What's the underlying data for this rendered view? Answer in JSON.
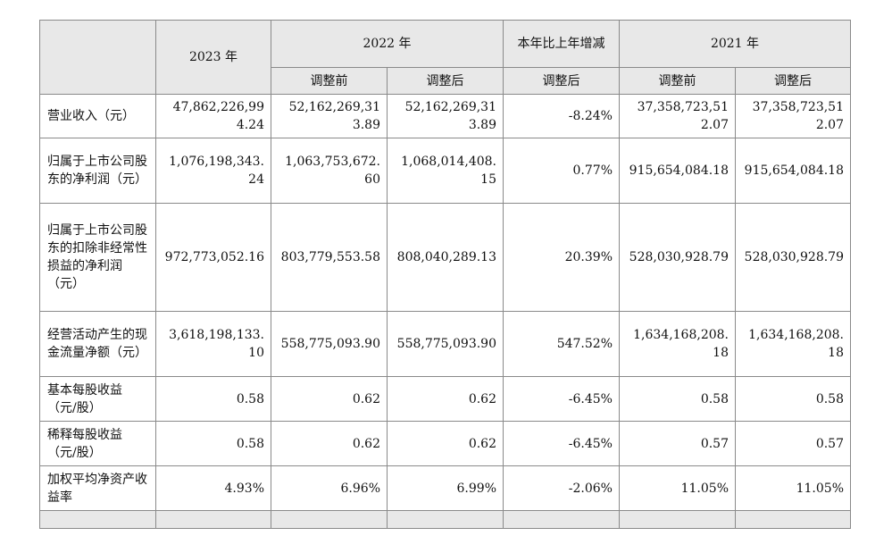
{
  "header": {
    "col_2023": "2023 年",
    "col_2022": "2022 年",
    "col_change": "本年比上年增减",
    "col_2021": "2021 年",
    "sub_before": "调整前",
    "sub_after": "调整后",
    "sub_change_after": "调整后"
  },
  "rows": [
    {
      "label": "营业收入（元）",
      "y2023": "47,862,226,994.24",
      "y2022_before": "52,162,269,313.89",
      "y2022_after": "52,162,269,313.89",
      "change": "-8.24%",
      "y2021_before": "37,358,723,512.07",
      "y2021_after": "37,358,723,512.07"
    },
    {
      "label": "归属于上市公司股东的净利润（元）",
      "y2023": "1,076,198,343.24",
      "y2022_before": "1,063,753,672.60",
      "y2022_after": "1,068,014,408.15",
      "change": "0.77%",
      "y2021_before": "915,654,084.18",
      "y2021_after": "915,654,084.18"
    },
    {
      "label": "归属于上市公司股东的扣除非经常性损益的净利润（元）",
      "y2023": "972,773,052.16",
      "y2022_before": "803,779,553.58",
      "y2022_after": "808,040,289.13",
      "change": "20.39%",
      "y2021_before": "528,030,928.79",
      "y2021_after": "528,030,928.79"
    },
    {
      "label": "经营活动产生的现金流量净额（元）",
      "y2023": "3,618,198,133.10",
      "y2022_before": "558,775,093.90",
      "y2022_after": "558,775,093.90",
      "change": "547.52%",
      "y2021_before": "1,634,168,208.18",
      "y2021_after": "1,634,168,208.18"
    },
    {
      "label": "基本每股收益（元/股）",
      "y2023": "0.58",
      "y2022_before": "0.62",
      "y2022_after": "0.62",
      "change": "-6.45%",
      "y2021_before": "0.58",
      "y2021_after": "0.58"
    },
    {
      "label": "稀释每股收益（元/股）",
      "y2023": "0.58",
      "y2022_before": "0.62",
      "y2022_after": "0.62",
      "change": "-6.45%",
      "y2021_before": "0.57",
      "y2021_after": "0.57"
    },
    {
      "label": "加权平均净资产收益率",
      "y2023": "4.93%",
      "y2022_before": "6.96%",
      "y2022_after": "6.99%",
      "change": "-2.06%",
      "y2021_before": "11.05%",
      "y2021_after": "11.05%"
    }
  ]
}
